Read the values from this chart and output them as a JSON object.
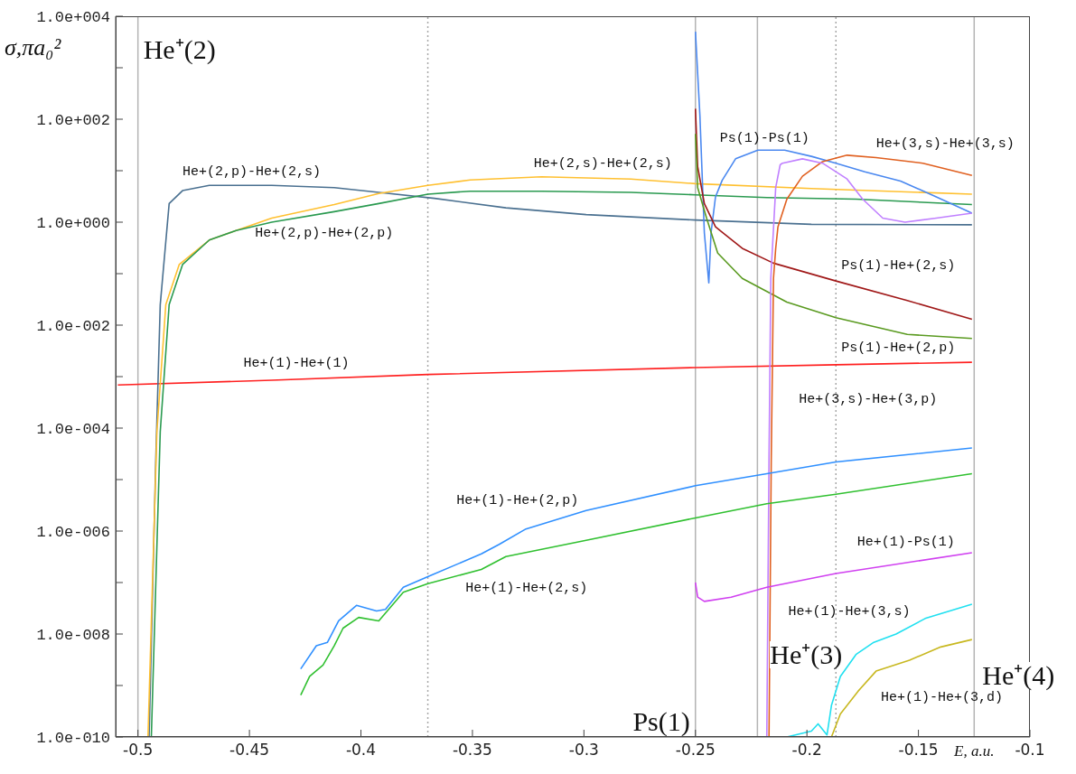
{
  "chart_data": {
    "type": "line",
    "xlabel": "E, a.u.",
    "ylabel": "σ,πa₀²",
    "log": true,
    "xlim": [
      -0.51,
      -0.1
    ],
    "xticks": [
      -0.5,
      -0.45,
      -0.4,
      -0.35,
      -0.3,
      -0.25,
      -0.2,
      -0.15,
      -0.1
    ],
    "ylim": [
      1e-10,
      10000
    ],
    "yticks": [
      {
        "value": 1e-10,
        "label": "1.0e-010"
      },
      {
        "value": 1e-09,
        "label": null
      },
      {
        "value": 1e-08,
        "label": "1.0e-008"
      },
      {
        "value": 1e-07,
        "label": null
      },
      {
        "value": 1e-06,
        "label": "1.0e-006"
      },
      {
        "value": 1e-05,
        "label": null
      },
      {
        "value": 0.0001,
        "label": "1.0e-004"
      },
      {
        "value": 0.001,
        "label": null
      },
      {
        "value": 0.01,
        "label": "1.0e-002"
      },
      {
        "value": 0.1,
        "label": null
      },
      {
        "value": 1,
        "label": "1.0e+000"
      },
      {
        "value": 10,
        "label": null
      },
      {
        "value": 100,
        "label": "1.0e+002"
      },
      {
        "value": 1000,
        "label": null
      },
      {
        "value": 10000,
        "label": "1.0e+004"
      }
    ],
    "ref_lines": [
      {
        "axis": "x",
        "value": -0.5,
        "label": "He⁺(2)",
        "color": "#b4b4b4",
        "line_style": "solid"
      },
      {
        "axis": "x",
        "value": -0.25,
        "label": "Ps(1)",
        "color": "#b4b4b4",
        "line_style": "solid"
      },
      {
        "axis": "x",
        "value": -0.2222,
        "label": "He⁺(3)",
        "color": "#b4b4b4",
        "line_style": "solid"
      },
      {
        "axis": "x",
        "value": -0.125,
        "label": "He⁺(4)",
        "color": "#b4b4b4",
        "line_style": "solid"
      },
      {
        "axis": "x",
        "value": -0.37,
        "color": "#a8a8a8",
        "line_style": "dotted"
      },
      {
        "axis": "x",
        "value": -0.187,
        "color": "#a8a8a8",
        "line_style": "dotted"
      }
    ],
    "series": [
      {
        "name": "He+(1)-He+(1)",
        "color": "#ff2020",
        "x": [
          -0.509,
          -0.44,
          -0.37,
          -0.25,
          -0.187,
          -0.126
        ],
        "values": [
          0.00069,
          0.00085,
          0.0011,
          0.0015,
          0.0017,
          0.0019
        ]
      },
      {
        "name": "He+(2,p)-He+(2,s)",
        "color": "#4a7090",
        "x": [
          -0.495,
          -0.492,
          -0.49,
          -0.486,
          -0.48,
          -0.468,
          -0.44,
          -0.412,
          -0.392,
          -0.367,
          -0.335,
          -0.299,
          -0.25,
          -0.198,
          -0.126
        ],
        "values": [
          1e-10,
          2.5e-05,
          0.025,
          2.3,
          4.1,
          5.2,
          5.2,
          4.7,
          3.8,
          2.9,
          1.9,
          1.4,
          1.1,
          0.91,
          0.89
        ]
      },
      {
        "name": "He+(2,s)-He+(2,s)",
        "color": "#ffc030",
        "x": [
          -0.4955,
          -0.4915,
          -0.4875,
          -0.4815,
          -0.468,
          -0.456,
          -0.44,
          -0.412,
          -0.392,
          -0.37,
          -0.351,
          -0.319,
          -0.279,
          -0.25,
          -0.198,
          -0.126
        ],
        "values": [
          1e-10,
          8.5e-05,
          0.025,
          0.15,
          0.45,
          0.69,
          1.2,
          2.2,
          3.6,
          5.2,
          6.6,
          7.6,
          6.9,
          5.6,
          4.5,
          3.5
        ]
      },
      {
        "name": "He+(2,p)-He+(2,p)",
        "color": "#2a9a50",
        "x": [
          -0.494,
          -0.49,
          -0.486,
          -0.48,
          -0.468,
          -0.456,
          -0.44,
          -0.412,
          -0.392,
          -0.37,
          -0.351,
          -0.319,
          -0.279,
          -0.25,
          -0.218,
          -0.178,
          -0.126
        ],
        "values": [
          1e-10,
          8.5e-05,
          0.025,
          0.15,
          0.45,
          0.69,
          1.0,
          1.6,
          2.3,
          3.5,
          4.0,
          4.0,
          3.8,
          3.4,
          3.0,
          2.8,
          2.2
        ]
      },
      {
        "name": "Ps(1)-Ps(1)",
        "color": "#4a88f0",
        "x": [
          -0.25,
          -0.248,
          -0.246,
          -0.244,
          -0.243,
          -0.241,
          -0.238,
          -0.232,
          -0.222,
          -0.21,
          -0.198,
          -0.187,
          -0.174,
          -0.158,
          -0.142,
          -0.126
        ],
        "values": [
          5000,
          120,
          0.62,
          0.066,
          0.62,
          3.1,
          6.5,
          17,
          25,
          25,
          19,
          14,
          9.5,
          6.3,
          3.1,
          1.5
        ]
      },
      {
        "name": "Ps(1)-He+(2,s)",
        "color": "#a01818",
        "x": [
          -0.25,
          -0.249,
          -0.246,
          -0.241,
          -0.229,
          -0.215,
          -0.187,
          -0.155,
          -0.126
        ],
        "values": [
          160,
          12,
          2.3,
          0.81,
          0.31,
          0.16,
          0.072,
          0.03,
          0.013
        ]
      },
      {
        "name": "Ps(1)-He+(2,p)",
        "color": "#5a9a20",
        "x": [
          -0.25,
          -0.249,
          -0.245,
          -0.24,
          -0.229,
          -0.209,
          -0.187,
          -0.155,
          -0.126
        ],
        "values": [
          52,
          4.7,
          1.2,
          0.25,
          0.081,
          0.028,
          0.014,
          0.0066,
          0.0055
        ]
      },
      {
        "name": "He+(3,s)-He+(3,s)",
        "color": "#e06020",
        "x": [
          -0.217,
          -0.216,
          -0.215,
          -0.214,
          -0.213,
          -0.209,
          -0.202,
          -0.193,
          -0.182,
          -0.169,
          -0.148,
          -0.126
        ],
        "values": [
          1e-10,
          2.5e-05,
          0.081,
          0.31,
          0.81,
          2.8,
          7.8,
          15,
          20,
          18,
          14,
          8.1
        ]
      },
      {
        "name": "He+(3,s)-He+(3,p)",
        "color": "#c080ff",
        "x": [
          -0.218,
          -0.217,
          -0.2162,
          -0.214,
          -0.212,
          -0.211,
          -0.202,
          -0.193,
          -0.182,
          -0.175,
          -0.166,
          -0.156,
          -0.142,
          -0.126
        ],
        "values": [
          1e-10,
          2.5e-05,
          0.081,
          4.7,
          13,
          14,
          17,
          14,
          6.9,
          2.8,
          1.2,
          1.0,
          1.2,
          1.5
        ]
      },
      {
        "name": "He+(1)-He+(2,p)",
        "color": "#3090ff",
        "x": [
          -0.427,
          -0.42,
          -0.415,
          -0.41,
          -0.402,
          -0.393,
          -0.389,
          -0.381,
          -0.37,
          -0.346,
          -0.338,
          -0.326,
          -0.299,
          -0.25,
          -0.218,
          -0.187,
          -0.126
        ],
        "values": [
          2.1e-09,
          5.9e-09,
          6.9e-09,
          1.8e-08,
          3.6e-08,
          2.8e-08,
          3e-08,
          8.1e-08,
          1.3e-07,
          3.6e-07,
          5.5e-07,
          1.1e-06,
          2.5e-06,
          7.6e-06,
          1.3e-05,
          2.2e-05,
          4.1e-05
        ]
      },
      {
        "name": "He+(1)-He+(2,s)",
        "color": "#30c030",
        "x": [
          -0.427,
          -0.423,
          -0.417,
          -0.412,
          -0.408,
          -0.401,
          -0.392,
          -0.381,
          -0.37,
          -0.346,
          -0.335,
          -0.299,
          -0.25,
          -0.218,
          -0.187,
          -0.126
        ],
        "values": [
          6.5e-10,
          1.5e-09,
          2.5e-09,
          5.9e-09,
          1.3e-08,
          2.1e-08,
          1.8e-08,
          6.5e-08,
          9.5e-08,
          1.8e-07,
          3.2e-07,
          6.6e-07,
          1.8e-06,
          3.4e-06,
          5.2e-06,
          1.3e-05
        ]
      },
      {
        "name": "He+(1)-Ps(1)",
        "color": "#d040f0",
        "x": [
          -0.25,
          -0.249,
          -0.246,
          -0.234,
          -0.218,
          -0.187,
          -0.126
        ],
        "values": [
          1e-07,
          5.2e-08,
          4.3e-08,
          5.2e-08,
          8.1e-08,
          1.5e-07,
          3.8e-07
        ]
      },
      {
        "name": "He+(1)-He+(3,s)",
        "color": "#20e0f0",
        "x": [
          -0.209,
          -0.198,
          -0.195,
          -0.191,
          -0.189,
          -0.185,
          -0.178,
          -0.17,
          -0.16,
          -0.147,
          -0.126
        ],
        "values": [
          1e-10,
          1.3e-10,
          1.8e-10,
          1.1e-10,
          4.1e-10,
          1.5e-09,
          4e-09,
          6.9e-09,
          1e-08,
          2e-08,
          3.8e-08
        ]
      },
      {
        "name": "He+(1)-He+(3,d)",
        "color": "#c8b820",
        "x": [
          -0.189,
          -0.185,
          -0.177,
          -0.169,
          -0.154,
          -0.14,
          -0.126
        ],
        "values": [
          1e-10,
          2.8e-10,
          7.8e-10,
          1.9e-09,
          3.1e-09,
          5.6e-09,
          7.8e-09
        ]
      }
    ]
  }
}
